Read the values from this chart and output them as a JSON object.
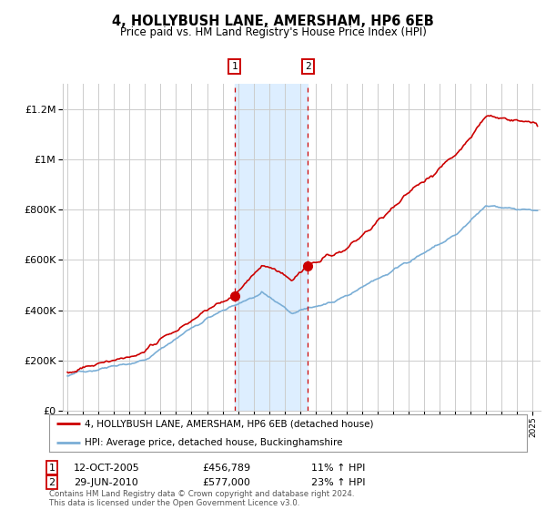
{
  "title": "4, HOLLYBUSH LANE, AMERSHAM, HP6 6EB",
  "subtitle": "Price paid vs. HM Land Registry's House Price Index (HPI)",
  "legend_line1": "4, HOLLYBUSH LANE, AMERSHAM, HP6 6EB (detached house)",
  "legend_line2": "HPI: Average price, detached house, Buckinghamshire",
  "footer": "Contains HM Land Registry data © Crown copyright and database right 2024.\nThis data is licensed under the Open Government Licence v3.0.",
  "sale1_date_str": "12-OCT-2005",
  "sale1_price": 456789,
  "sale1_year": 2005.78,
  "sale1_hpi_pct": "11% ↑ HPI",
  "sale2_date_str": "29-JUN-2010",
  "sale2_price": 577000,
  "sale2_year": 2010.49,
  "sale2_hpi_pct": "23% ↑ HPI",
  "red_color": "#cc0000",
  "blue_color": "#7aaed6",
  "shade_color": "#ddeeff",
  "grid_color": "#cccccc",
  "bg_color": "#ffffff",
  "ylim": [
    0,
    1300000
  ],
  "xlim": [
    1994.7,
    2025.5
  ]
}
